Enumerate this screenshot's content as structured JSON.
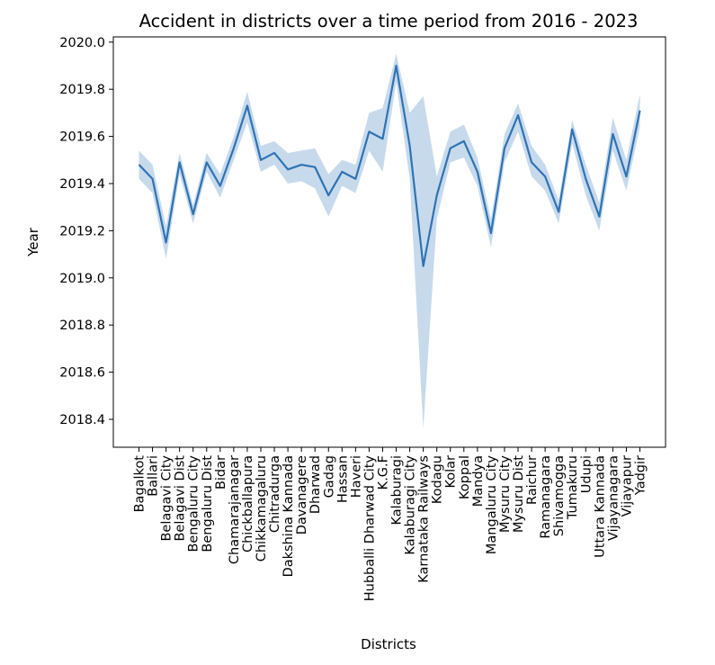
{
  "chart_data": {
    "type": "line",
    "title": "Accident in districts over a time period from 2016 - 2023",
    "xlabel": "Districts",
    "ylabel": "Year",
    "ylim": [
      2018.28,
      2020.03
    ],
    "yticks": [
      "2018.4",
      "2018.6",
      "2018.8",
      "2019.0",
      "2019.2",
      "2019.4",
      "2019.6",
      "2019.8",
      "2020.0"
    ],
    "categories": [
      "Bagalkot",
      "Ballari",
      "Belagavi City",
      "Belagavi Dist",
      "Bengaluru City",
      "Bengaluru Dist",
      "Bidar",
      "Chamarajanagar",
      "Chickballapura",
      "Chikkamagaluru",
      "Chitradurga",
      "Dakshina Kannada",
      "Davanagere",
      "Dharwad",
      "Gadag",
      "Hassan",
      "Haveri",
      "Hubballi Dharwad City",
      "K.G.F",
      "Kalaburagi",
      "Kalaburagi City",
      "Karnataka Railways",
      "Kodagu",
      "Kolar",
      "Koppal",
      "Mandya",
      "Mangaluru City",
      "Mysuru City",
      "Mysuru Dist",
      "Raichur",
      "Ramanagara",
      "Shivamogga",
      "Tumakuru",
      "Udupi",
      "Uttara Kannada",
      "Vijayanagara",
      "Vijayapur",
      "Yadgir"
    ],
    "series": [
      {
        "values": [
          2019.48,
          2019.42,
          2019.15,
          2019.49,
          2019.27,
          2019.49,
          2019.39,
          2019.55,
          2019.73,
          2019.5,
          2019.53,
          2019.46,
          2019.48,
          2019.47,
          2019.35,
          2019.45,
          2019.42,
          2019.62,
          2019.59,
          2019.9,
          2019.56,
          2019.05,
          2019.35,
          2019.55,
          2019.58,
          2019.45,
          2019.19,
          2019.55,
          2019.69,
          2019.49,
          2019.43,
          2019.28,
          2019.63,
          2019.42,
          2019.26,
          2019.61,
          2019.43,
          2019.71
        ],
        "lower": [
          2019.42,
          2019.36,
          2019.08,
          2019.44,
          2019.23,
          2019.45,
          2019.34,
          2019.5,
          2019.66,
          2019.45,
          2019.48,
          2019.4,
          2019.41,
          2019.38,
          2019.26,
          2019.39,
          2019.36,
          2019.54,
          2019.45,
          2019.83,
          2019.42,
          2018.36,
          2019.25,
          2019.49,
          2019.51,
          2019.39,
          2019.13,
          2019.49,
          2019.62,
          2019.43,
          2019.37,
          2019.23,
          2019.57,
          2019.35,
          2019.2,
          2019.54,
          2019.37,
          2019.64
        ],
        "upper": [
          2019.54,
          2019.48,
          2019.22,
          2019.53,
          2019.31,
          2019.53,
          2019.44,
          2019.6,
          2019.79,
          2019.56,
          2019.58,
          2019.53,
          2019.54,
          2019.55,
          2019.44,
          2019.5,
          2019.48,
          2019.7,
          2019.72,
          2019.95,
          2019.7,
          2019.77,
          2019.43,
          2019.62,
          2019.65,
          2019.51,
          2019.25,
          2019.61,
          2019.74,
          2019.56,
          2019.48,
          2019.33,
          2019.67,
          2019.48,
          2019.32,
          2019.68,
          2019.5,
          2019.78
        ]
      }
    ],
    "colors": {
      "line": "#2f73b3",
      "band": "#a9c6e2"
    },
    "grid": false,
    "legend": "none"
  }
}
